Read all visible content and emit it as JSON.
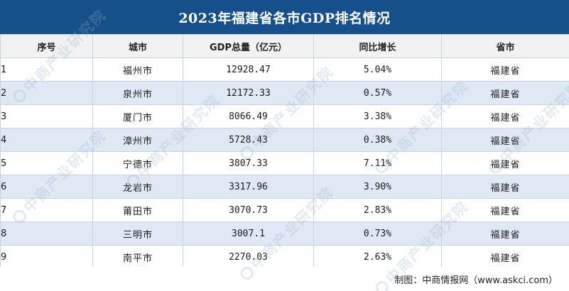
{
  "title": "2023年福建省各市GDP排名情况",
  "table": {
    "headers": [
      "序号",
      "城市",
      "GDP总量（亿元）",
      "同比增长",
      "省市"
    ],
    "rows": [
      {
        "rank": "1",
        "city": "福州市",
        "gdp": "12928.47",
        "growth": "5.04%",
        "province": "福建省"
      },
      {
        "rank": "2",
        "city": "泉州市",
        "gdp": "12172.33",
        "growth": "0.57%",
        "province": "福建省"
      },
      {
        "rank": "3",
        "city": "厦门市",
        "gdp": "8066.49",
        "growth": "3.38%",
        "province": "福建省"
      },
      {
        "rank": "4",
        "city": "漳州市",
        "gdp": "5728.43",
        "growth": "0.38%",
        "province": "福建省"
      },
      {
        "rank": "5",
        "city": "宁德市",
        "gdp": "3807.33",
        "growth": "7.11%",
        "province": "福建省"
      },
      {
        "rank": "6",
        "city": "龙岩市",
        "gdp": "3317.96",
        "growth": "3.90%",
        "province": "福建省"
      },
      {
        "rank": "7",
        "city": "莆田市",
        "gdp": "3070.73",
        "growth": "2.83%",
        "province": "福建省"
      },
      {
        "rank": "8",
        "city": "三明市",
        "gdp": "3007.1",
        "growth": "0.73%",
        "province": "福建省"
      },
      {
        "rank": "9",
        "city": "南平市",
        "gdp": "2270.03",
        "growth": "2.63%",
        "province": "福建省"
      }
    ]
  },
  "footer": {
    "source": "制图：中商情报网（www.askci.com）"
  },
  "watermark": {
    "text": "中商产业研究院"
  },
  "colors": {
    "title_bg": "#16508a",
    "header_bg": "#f2f2f2",
    "stripe_bg": "#dfe9f6",
    "border": "#c9d3de"
  }
}
